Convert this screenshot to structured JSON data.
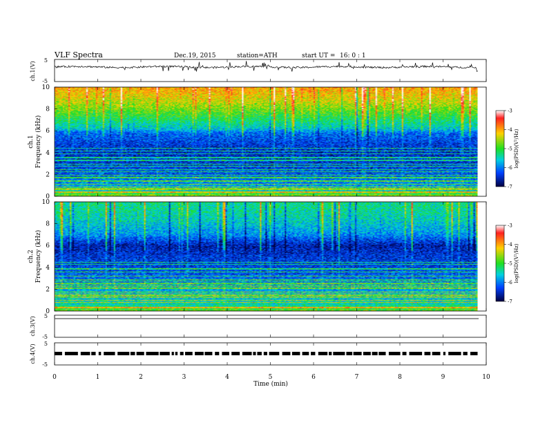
{
  "header": {
    "title": "VLF Spectra",
    "date": "Dec.19, 2015",
    "station": "station=ATH",
    "start": "start UT =",
    "start_time": "16: 0 : 1"
  },
  "chart_data": [
    {
      "type": "line",
      "panel": "ch1-waveform",
      "ylabel": "ch.1(V)",
      "ylim": [
        -5,
        5
      ],
      "yticks": [
        "5",
        "-5"
      ],
      "xlim": [
        0,
        10
      ],
      "data_extent": [
        0,
        9.8
      ],
      "series": [
        {
          "values_summary": "noisy trace centered near 2 V with spikes between -5 and 5"
        }
      ],
      "color": "#000000"
    },
    {
      "type": "heatmap",
      "panel": "ch1-spectrogram",
      "ylabel": "ch.1\nFrequency (kHz)",
      "ylim": [
        0,
        10
      ],
      "yticks": [
        "0",
        "2",
        "4",
        "6",
        "8",
        "10"
      ],
      "xlim": [
        0,
        10
      ],
      "data_extent": [
        0,
        9.8
      ],
      "colorbar": {
        "label": "log(PSD)(V²/Hz)",
        "range": [
          -7,
          -3
        ],
        "ticks": [
          "-3",
          "-4",
          "-5",
          "-6",
          "-7"
        ]
      },
      "profile_khz": [
        [
          0,
          -4.6
        ],
        [
          0.5,
          -5.6
        ],
        [
          1,
          -5.9
        ],
        [
          2,
          -6.2
        ],
        [
          3,
          -6.4
        ],
        [
          4,
          -6.5
        ],
        [
          5,
          -6.3
        ],
        [
          5.8,
          -6.1
        ],
        [
          6.2,
          -5.6
        ],
        [
          7,
          -5.2
        ],
        [
          8,
          -4.7
        ],
        [
          9,
          -4.3
        ],
        [
          10,
          -4.0
        ]
      ]
    },
    {
      "type": "heatmap",
      "panel": "ch2-spectrogram",
      "ylabel": "ch.2\nFrequency (kHz)",
      "ylim": [
        0,
        10
      ],
      "yticks": [
        "0",
        "2",
        "4",
        "6",
        "8",
        "10"
      ],
      "xlim": [
        0,
        10
      ],
      "data_extent": [
        0,
        9.8
      ],
      "colorbar": {
        "label": "log(PSD)(V²/Hz)",
        "range": [
          -7,
          -3
        ],
        "ticks": [
          "-3",
          "-4",
          "-5",
          "-6",
          "-7"
        ]
      },
      "profile_khz": [
        [
          0,
          -4.8
        ],
        [
          0.5,
          -5.4
        ],
        [
          1,
          -5.6
        ],
        [
          2,
          -5.8
        ],
        [
          3,
          -6.1
        ],
        [
          4,
          -6.3
        ],
        [
          5,
          -6.4
        ],
        [
          6,
          -6.6
        ],
        [
          7,
          -5.9
        ],
        [
          8,
          -5.6
        ],
        [
          9,
          -5.4
        ],
        [
          10,
          -5.3
        ]
      ]
    },
    {
      "type": "line",
      "panel": "ch3-waveform",
      "ylabel": "ch.3(V)",
      "ylim": [
        -5,
        5
      ],
      "yticks": [
        "5",
        "-5"
      ],
      "xlim": [
        0,
        10
      ],
      "data_extent": [
        0,
        9.8
      ],
      "series": [
        {
          "values_summary": "flat trace near 3 V"
        }
      ]
    },
    {
      "type": "line",
      "panel": "ch4-waveform",
      "ylabel": "ch.4(V)",
      "ylim": [
        -5,
        5
      ],
      "yticks": [
        "5",
        "-5"
      ],
      "xlim": [
        0,
        10
      ],
      "data_extent": [
        0,
        9.8
      ],
      "series": [
        {
          "values_summary": "thick dashed band near 0 V"
        }
      ]
    }
  ],
  "xaxis": {
    "label": "Time (min)",
    "ticks": [
      "0",
      "1",
      "2",
      "3",
      "4",
      "5",
      "6",
      "7",
      "8",
      "9",
      "10"
    ]
  }
}
